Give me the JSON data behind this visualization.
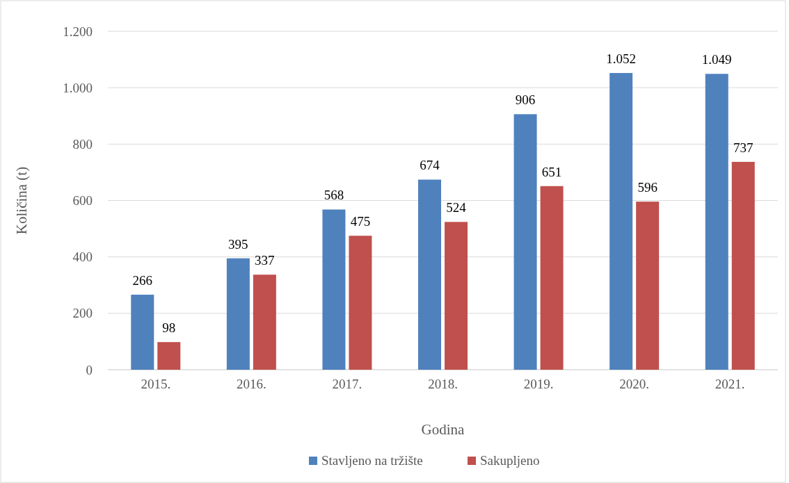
{
  "chart_data": {
    "type": "bar",
    "xlabel": "Godina",
    "ylabel": "Količina (t)",
    "categories": [
      "2015.",
      "2016.",
      "2017.",
      "2018.",
      "2019.",
      "2020.",
      "2021."
    ],
    "series": [
      {
        "name": "Stavljeno na tržište",
        "color": "#4f81bd",
        "values": [
          266,
          395,
          568,
          674,
          906,
          1052,
          1049
        ],
        "value_labels": [
          "266",
          "395",
          "568",
          "674",
          "906",
          "1.052",
          "1.049"
        ]
      },
      {
        "name": "Sakupljeno",
        "color": "#c0504d",
        "values": [
          98,
          337,
          475,
          524,
          651,
          596,
          737
        ],
        "value_labels": [
          "98",
          "337",
          "475",
          "524",
          "651",
          "596",
          "737"
        ]
      }
    ],
    "ylim": [
      0,
      1200
    ],
    "yticks": [
      0,
      200,
      400,
      600,
      800,
      {
        "value": 1000,
        "label": "1.000"
      },
      {
        "value": 1200,
        "label": "1.200"
      }
    ],
    "grid": "y",
    "legend": "bottom"
  }
}
